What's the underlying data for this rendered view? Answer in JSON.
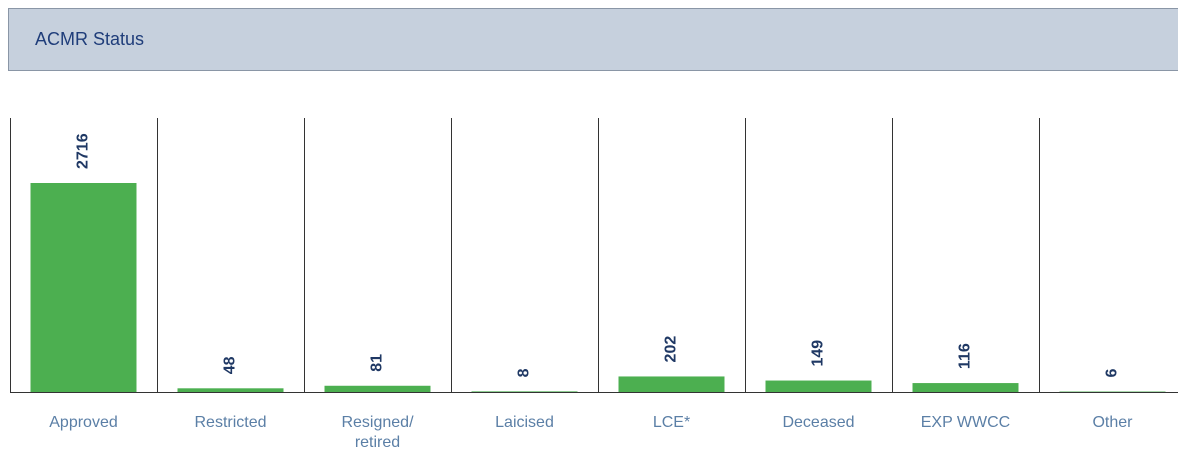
{
  "chart_data": {
    "type": "bar",
    "title": "ACMR Status",
    "categories": [
      "Approved",
      "Restricted",
      "Resigned/ retired",
      "Laicised",
      "LCE*",
      "Deceased",
      "EXP WWCC",
      "Other"
    ],
    "values": [
      2716,
      48,
      81,
      8,
      202,
      149,
      116,
      6
    ],
    "color": "#4caf50"
  }
}
